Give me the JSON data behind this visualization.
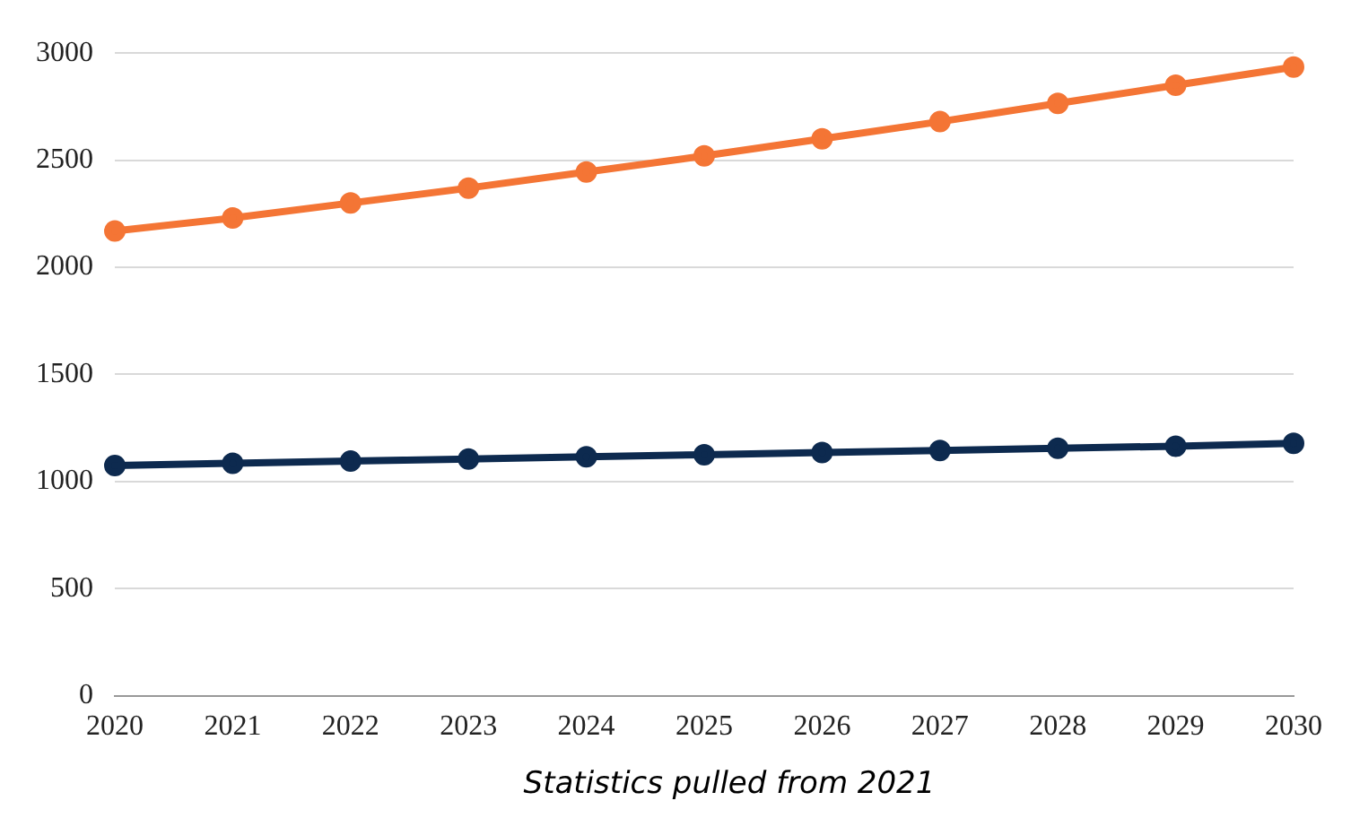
{
  "chart_data": {
    "type": "line",
    "categories": [
      "2020",
      "2021",
      "2022",
      "2023",
      "2024",
      "2025",
      "2026",
      "2027",
      "2028",
      "2029",
      "2030"
    ],
    "series": [
      {
        "color": "#f47535",
        "values": [
          2170,
          2230,
          2300,
          2370,
          2445,
          2520,
          2600,
          2680,
          2765,
          2850,
          2935
        ]
      },
      {
        "color": "#0d2a4f",
        "values": [
          1075,
          1085,
          1095,
          1105,
          1115,
          1125,
          1135,
          1145,
          1155,
          1165,
          1178
        ]
      }
    ],
    "ylim": [
      0,
      3000
    ],
    "yticks": [
      0,
      500,
      1000,
      1500,
      2000,
      2500,
      3000
    ],
    "grid": "y",
    "legend": false,
    "marker": "circle",
    "line_style": "solid",
    "annotations": [
      "Statistics pulled from 2021"
    ]
  }
}
